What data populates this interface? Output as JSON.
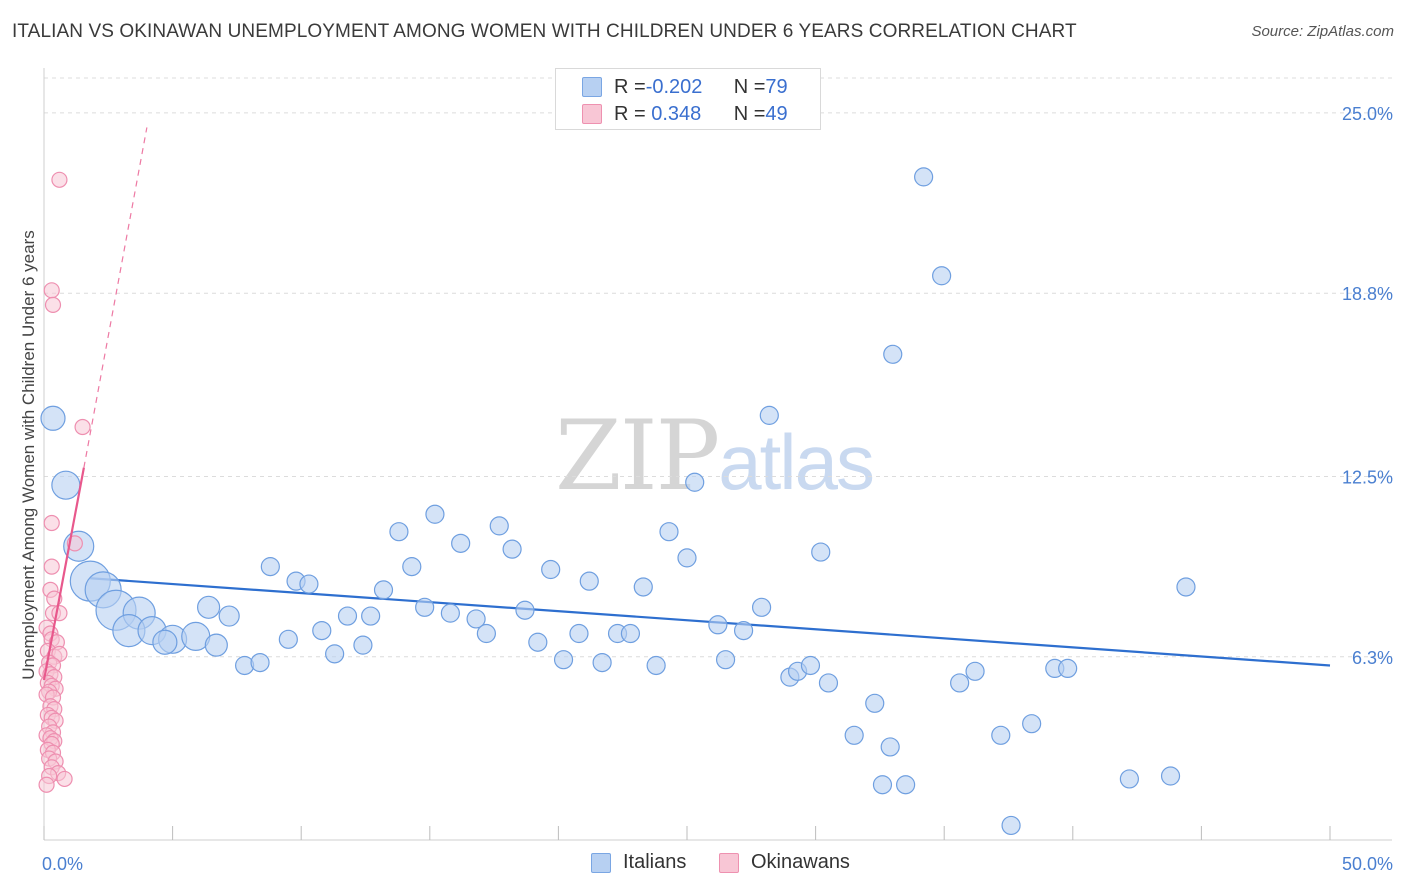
{
  "title": "ITALIAN VS OKINAWAN UNEMPLOYMENT AMONG WOMEN WITH CHILDREN UNDER 6 YEARS CORRELATION CHART",
  "source": "Source: ZipAtlas.com",
  "watermark": {
    "zip": "ZIP",
    "atlas": "atlas"
  },
  "legend_top": [
    {
      "r_label": "R = ",
      "r_value": "-0.202",
      "n_label": "N = ",
      "n_value": "79"
    },
    {
      "r_label": "R = ",
      "r_value": " 0.348",
      "n_label": "N = ",
      "n_value": "49"
    }
  ],
  "legend_bottom": {
    "italians": "Italians",
    "okinawans": "Okinawans"
  },
  "colors": {
    "blue_fill": "#b7d0f2",
    "blue_stroke": "#6f9fe0",
    "blue_line": "#2e6fcf",
    "pink_fill": "#f8c6d5",
    "pink_stroke": "#ee8fb0",
    "pink_line": "#e8588c"
  },
  "chart_data": {
    "type": "scatter",
    "title": "ITALIAN VS OKINAWAN UNEMPLOYMENT AMONG WOMEN WITH CHILDREN UNDER 6 YEARS CORRELATION CHART",
    "xlabel": "",
    "ylabel": "Unemployment Among Women with Children Under 6 years",
    "xlim": [
      0,
      50
    ],
    "ylim": [
      0,
      26.2
    ],
    "x_tick_labels": [
      "0.0%",
      "50.0%"
    ],
    "y_ticks": [
      6.3,
      12.5,
      18.8,
      25.0
    ],
    "y_tick_labels": [
      "6.3%",
      "12.5%",
      "18.8%",
      "25.0%"
    ],
    "series": [
      {
        "name": "Italians",
        "r": -0.202,
        "n": 79,
        "trend": {
          "x": [
            1.8,
            50
          ],
          "y": [
            9.0,
            6.0
          ]
        },
        "points": [
          [
            0.35,
            14.5,
            12
          ],
          [
            0.85,
            12.2,
            14
          ],
          [
            1.35,
            10.1,
            15
          ],
          [
            1.8,
            8.9,
            20
          ],
          [
            2.3,
            8.6,
            18
          ],
          [
            2.8,
            7.9,
            20
          ],
          [
            3.7,
            7.8,
            16
          ],
          [
            3.3,
            7.2,
            16
          ],
          [
            4.2,
            7.2,
            14
          ],
          [
            5.0,
            6.9,
            14
          ],
          [
            5.9,
            7.0,
            14
          ],
          [
            4.7,
            6.8,
            12
          ],
          [
            6.4,
            8.0,
            11
          ],
          [
            6.7,
            6.7,
            11
          ],
          [
            7.2,
            7.7,
            10
          ],
          [
            7.8,
            6.0,
            9
          ],
          [
            8.4,
            6.1,
            9
          ],
          [
            8.8,
            9.4,
            9
          ],
          [
            9.5,
            6.9,
            9
          ],
          [
            9.8,
            8.9,
            9
          ],
          [
            10.3,
            8.8,
            9
          ],
          [
            10.8,
            7.2,
            9
          ],
          [
            11.3,
            6.4,
            9
          ],
          [
            11.8,
            7.7,
            9
          ],
          [
            12.4,
            6.7,
            9
          ],
          [
            12.7,
            7.7,
            9
          ],
          [
            13.2,
            8.6,
            9
          ],
          [
            13.8,
            10.6,
            9
          ],
          [
            14.3,
            9.4,
            9
          ],
          [
            14.8,
            8.0,
            9
          ],
          [
            15.2,
            11.2,
            9
          ],
          [
            15.8,
            7.8,
            9
          ],
          [
            16.2,
            10.2,
            9
          ],
          [
            16.8,
            7.6,
            9
          ],
          [
            17.2,
            7.1,
            9
          ],
          [
            17.7,
            10.8,
            9
          ],
          [
            18.2,
            10.0,
            9
          ],
          [
            18.7,
            7.9,
            9
          ],
          [
            19.2,
            6.8,
            9
          ],
          [
            19.7,
            9.3,
            9
          ],
          [
            20.2,
            6.2,
            9
          ],
          [
            20.8,
            7.1,
            9
          ],
          [
            21.2,
            8.9,
            9
          ],
          [
            21.7,
            6.1,
            9
          ],
          [
            22.3,
            7.1,
            9
          ],
          [
            22.8,
            7.1,
            9
          ],
          [
            23.3,
            8.7,
            9
          ],
          [
            23.8,
            6.0,
            9
          ],
          [
            24.3,
            10.6,
            9
          ],
          [
            25.0,
            9.7,
            9
          ],
          [
            25.3,
            12.3,
            9
          ],
          [
            26.2,
            7.4,
            9
          ],
          [
            26.5,
            6.2,
            9
          ],
          [
            27.2,
            7.2,
            9
          ],
          [
            27.9,
            8.0,
            9
          ],
          [
            28.2,
            14.6,
            9
          ],
          [
            29.0,
            5.6,
            9
          ],
          [
            29.3,
            5.8,
            9
          ],
          [
            29.8,
            6.0,
            9
          ],
          [
            30.2,
            9.9,
            9
          ],
          [
            30.5,
            5.4,
            9
          ],
          [
            31.5,
            3.6,
            9
          ],
          [
            32.3,
            4.7,
            9
          ],
          [
            32.6,
            1.9,
            9
          ],
          [
            32.9,
            3.2,
            9
          ],
          [
            33.0,
            16.7,
            9
          ],
          [
            33.5,
            1.9,
            9
          ],
          [
            34.2,
            22.8,
            9
          ],
          [
            34.9,
            19.4,
            9
          ],
          [
            35.6,
            5.4,
            9
          ],
          [
            36.2,
            5.8,
            9
          ],
          [
            37.2,
            3.6,
            9
          ],
          [
            37.6,
            0.5,
            9
          ],
          [
            38.4,
            4.0,
            9
          ],
          [
            39.3,
            5.9,
            9
          ],
          [
            39.8,
            5.9,
            9
          ],
          [
            42.2,
            2.1,
            9
          ],
          [
            44.4,
            8.7,
            9
          ],
          [
            43.8,
            2.2,
            9
          ]
        ]
      },
      {
        "name": "Okinawans",
        "r": 0.348,
        "n": 49,
        "trend": {
          "x": [
            0.0,
            1.55
          ],
          "y": [
            5.5,
            12.8
          ]
        },
        "trend_extension": {
          "x": [
            1.55,
            4.0
          ],
          "y": [
            12.8,
            24.5
          ]
        },
        "points": [
          [
            0.6,
            22.7
          ],
          [
            0.3,
            18.9
          ],
          [
            0.35,
            18.4
          ],
          [
            1.5,
            14.2
          ],
          [
            0.3,
            10.9
          ],
          [
            1.2,
            10.2
          ],
          [
            0.3,
            9.4
          ],
          [
            0.25,
            8.6
          ],
          [
            0.4,
            8.3
          ],
          [
            0.35,
            7.8
          ],
          [
            0.6,
            7.8
          ],
          [
            0.1,
            7.3
          ],
          [
            0.25,
            7.1
          ],
          [
            0.3,
            6.9
          ],
          [
            0.5,
            6.8
          ],
          [
            0.15,
            6.5
          ],
          [
            0.4,
            6.3
          ],
          [
            0.6,
            6.4
          ],
          [
            0.2,
            6.1
          ],
          [
            0.35,
            6.0
          ],
          [
            0.1,
            5.8
          ],
          [
            0.25,
            5.7
          ],
          [
            0.4,
            5.6
          ],
          [
            0.15,
            5.4
          ],
          [
            0.3,
            5.3
          ],
          [
            0.45,
            5.2
          ],
          [
            0.2,
            5.1
          ],
          [
            0.1,
            5.0
          ],
          [
            0.35,
            4.9
          ],
          [
            0.25,
            4.6
          ],
          [
            0.4,
            4.5
          ],
          [
            0.15,
            4.3
          ],
          [
            0.3,
            4.2
          ],
          [
            0.45,
            4.1
          ],
          [
            0.2,
            3.9
          ],
          [
            0.35,
            3.7
          ],
          [
            0.1,
            3.6
          ],
          [
            0.25,
            3.5
          ],
          [
            0.4,
            3.4
          ],
          [
            0.3,
            3.3
          ],
          [
            0.15,
            3.1
          ],
          [
            0.35,
            3.0
          ],
          [
            0.2,
            2.8
          ],
          [
            0.45,
            2.7
          ],
          [
            0.3,
            2.5
          ],
          [
            0.55,
            2.3
          ],
          [
            0.2,
            2.2
          ],
          [
            0.8,
            2.1
          ],
          [
            0.1,
            1.9
          ]
        ]
      }
    ]
  }
}
